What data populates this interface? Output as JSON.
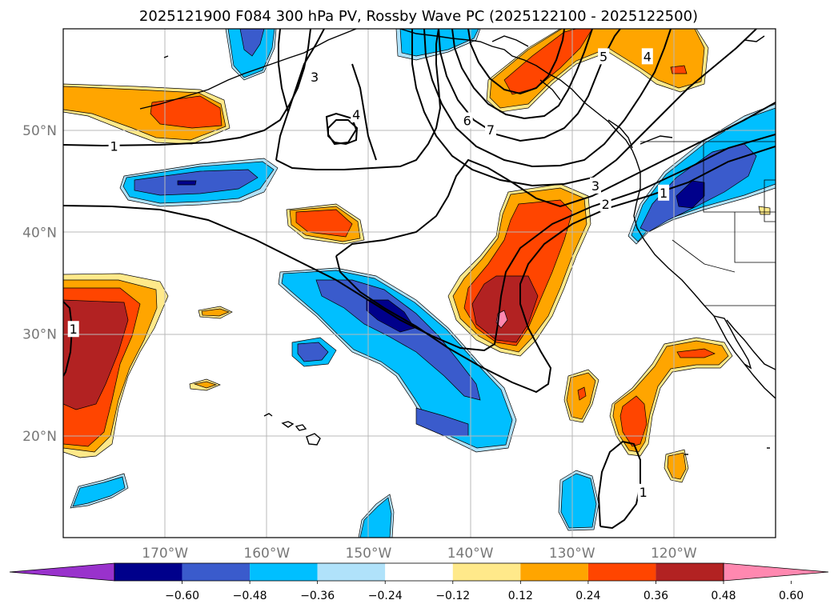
{
  "title": "2025121900 F084 300 hPa PV, Rossby Wave PC (2025122100 - 2025122500)",
  "map": {
    "lon_range": [
      -180,
      -110
    ],
    "lat_range": [
      10,
      60
    ],
    "lat_ticks": [
      {
        "value": 20,
        "label": "20°N"
      },
      {
        "value": 30,
        "label": "30°N"
      },
      {
        "value": 40,
        "label": "40°N"
      },
      {
        "value": 50,
        "label": "50°N"
      }
    ],
    "lon_ticks": [
      {
        "value": -170,
        "label": "170°W"
      },
      {
        "value": -160,
        "label": "160°W"
      },
      {
        "value": -150,
        "label": "150°W"
      },
      {
        "value": -140,
        "label": "140°W"
      },
      {
        "value": -130,
        "label": "130°W"
      },
      {
        "value": -120,
        "label": "120°W"
      }
    ],
    "grid": true
  },
  "colorbar": {
    "ticks": [
      "−0.60",
      "−0.48",
      "−0.36",
      "−0.24",
      "−0.12",
      "0.12",
      "0.24",
      "0.36",
      "0.48",
      "0.60"
    ],
    "colors": [
      "#9932cc",
      "#00008b",
      "#3a5bcc",
      "#00bfff",
      "#b0e2fa",
      "#ffffff",
      "#ffe98a",
      "#ffa500",
      "#ff4500",
      "#b22222",
      "#ff88b0"
    ],
    "extend": "both"
  },
  "pv_contour_labels": [
    {
      "text": "1",
      "lon": -175,
      "lat": 48.5
    },
    {
      "text": "3",
      "lon": -155.3,
      "lat": 55.3
    },
    {
      "text": "4",
      "lon": -151.2,
      "lat": 51.6
    },
    {
      "text": "6",
      "lon": -140.3,
      "lat": 51.0
    },
    {
      "text": "7",
      "lon": -138.0,
      "lat": 50.1
    },
    {
      "text": "5",
      "lon": -126.9,
      "lat": 57.3
    },
    {
      "text": "4",
      "lon": -122.6,
      "lat": 57.3
    },
    {
      "text": "3",
      "lon": -127.7,
      "lat": 44.6
    },
    {
      "text": "2",
      "lon": -126.7,
      "lat": 42.8
    },
    {
      "text": "1",
      "lon": -121.0,
      "lat": 43.9
    },
    {
      "text": "1",
      "lon": -179.0,
      "lat": 30.5
    },
    {
      "text": "1",
      "lon": -123.0,
      "lat": 14.5
    }
  ]
}
